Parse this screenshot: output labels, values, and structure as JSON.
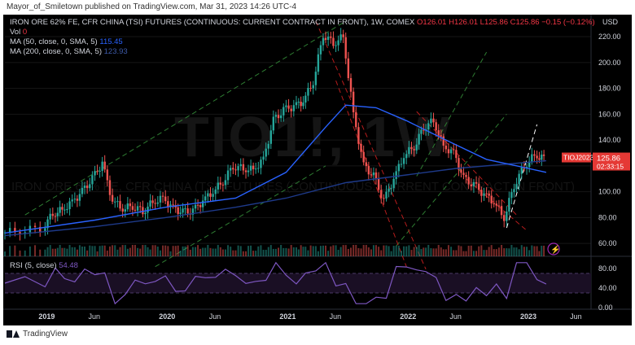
{
  "publisher_line": "Mayor_of_Smiletown published on TradingView.com, Mar 31, 2023 14:26 UTC-4",
  "footer_brand": "TradingView",
  "watermark": {
    "symbol": "TIO1!, 1W",
    "description": "IRON ORE 62% FE, CFR CHINA (TSI) FUTURES (CONTINUOUS: CURRENT CONTRACT IN FRONT)"
  },
  "legend": {
    "symbol_line": "IRON ORE 62% FE, CFR CHINA (TSI) FUTURES (CONTINUOUS: CURRENT CONTRACT IN FRONT), 1W, COMEX",
    "ohlc": "O126.01  H126.01  L125.86  C125.86  −0.15 (−0.12%)",
    "vol_label": "Vol",
    "vol_value": "0",
    "ma50_label": "MA (50, close, 0, SMA, 5)",
    "ma50_value": "115.45",
    "ma200_label": "MA (200, close, 0, SMA, 5)",
    "ma200_value": "123.93",
    "rsi_label": "RSI (5, close)",
    "rsi_value": "54.48"
  },
  "price_tag": {
    "price": "125.86",
    "countdown": "02:33:15",
    "ticker": "TIOJ2023"
  },
  "colors": {
    "up": "#26a69a",
    "down": "#ef5350",
    "ma50": "#2962ff",
    "ma200": "#1e3a8a",
    "rsi": "#7e57c2",
    "trend_green": "#2e7d32",
    "trend_red": "#b71c1c",
    "tag": "#e53935"
  },
  "chart_data": {
    "type": "candlestick",
    "currency": "USD",
    "y_ticks": [
      "60.00",
      "80.00",
      "100.00",
      "120.00",
      "140.00",
      "160.00",
      "180.00",
      "200.00",
      "220.00"
    ],
    "x_ticks": [
      "2019",
      "Jun",
      "2020",
      "Jun",
      "2021",
      "Jun",
      "2022",
      "Jun",
      "2023",
      "Jun"
    ],
    "rsi_ticks": [
      "80.00",
      "40.00",
      "0.00"
    ],
    "ylim": [
      50,
      232
    ],
    "rsi_bands": [
      70,
      30
    ],
    "close_series": [
      {
        "date": "2018-09",
        "value": 68
      },
      {
        "date": "2018-11",
        "value": 70
      },
      {
        "date": "2019-01",
        "value": 72
      },
      {
        "date": "2019-02",
        "value": 83
      },
      {
        "date": "2019-03",
        "value": 86
      },
      {
        "date": "2019-04",
        "value": 92
      },
      {
        "date": "2019-05",
        "value": 100
      },
      {
        "date": "2019-06",
        "value": 110
      },
      {
        "date": "2019-07",
        "value": 122
      },
      {
        "date": "2019-08",
        "value": 93
      },
      {
        "date": "2019-09",
        "value": 87
      },
      {
        "date": "2019-10",
        "value": 89
      },
      {
        "date": "2019-11",
        "value": 85
      },
      {
        "date": "2019-12",
        "value": 92
      },
      {
        "date": "2020-01",
        "value": 95
      },
      {
        "date": "2020-02",
        "value": 87
      },
      {
        "date": "2020-03",
        "value": 84
      },
      {
        "date": "2020-04",
        "value": 85
      },
      {
        "date": "2020-05",
        "value": 93
      },
      {
        "date": "2020-06",
        "value": 100
      },
      {
        "date": "2020-07",
        "value": 108
      },
      {
        "date": "2020-08",
        "value": 120
      },
      {
        "date": "2020-09",
        "value": 118
      },
      {
        "date": "2020-10",
        "value": 117
      },
      {
        "date": "2020-11",
        "value": 125
      },
      {
        "date": "2020-12",
        "value": 155
      },
      {
        "date": "2021-01",
        "value": 163
      },
      {
        "date": "2021-02",
        "value": 166
      },
      {
        "date": "2021-03",
        "value": 170
      },
      {
        "date": "2021-04",
        "value": 185
      },
      {
        "date": "2021-05",
        "value": 222
      },
      {
        "date": "2021-06",
        "value": 215
      },
      {
        "date": "2021-07",
        "value": 220
      },
      {
        "date": "2021-08",
        "value": 160
      },
      {
        "date": "2021-09",
        "value": 120
      },
      {
        "date": "2021-10",
        "value": 112
      },
      {
        "date": "2021-11",
        "value": 93
      },
      {
        "date": "2021-12",
        "value": 110
      },
      {
        "date": "2022-01",
        "value": 128
      },
      {
        "date": "2022-02",
        "value": 135
      },
      {
        "date": "2022-03",
        "value": 150
      },
      {
        "date": "2022-04",
        "value": 155
      },
      {
        "date": "2022-05",
        "value": 135
      },
      {
        "date": "2022-06",
        "value": 130
      },
      {
        "date": "2022-07",
        "value": 110
      },
      {
        "date": "2022-08",
        "value": 105
      },
      {
        "date": "2022-09",
        "value": 98
      },
      {
        "date": "2022-10",
        "value": 92
      },
      {
        "date": "2022-11",
        "value": 80
      },
      {
        "date": "2022-12",
        "value": 105
      },
      {
        "date": "2023-01",
        "value": 120
      },
      {
        "date": "2023-02",
        "value": 128
      },
      {
        "date": "2023-03",
        "value": 126
      }
    ],
    "ma50_series": [
      {
        "date": "2018-09",
        "value": 68
      },
      {
        "date": "2019-06",
        "value": 78
      },
      {
        "date": "2020-01",
        "value": 88
      },
      {
        "date": "2020-08",
        "value": 95
      },
      {
        "date": "2021-01",
        "value": 115
      },
      {
        "date": "2021-05",
        "value": 150
      },
      {
        "date": "2021-07",
        "value": 167
      },
      {
        "date": "2021-10",
        "value": 165
      },
      {
        "date": "2022-01",
        "value": 155
      },
      {
        "date": "2022-05",
        "value": 140
      },
      {
        "date": "2022-09",
        "value": 125
      },
      {
        "date": "2022-12",
        "value": 120
      },
      {
        "date": "2023-03",
        "value": 115
      }
    ],
    "ma200_series": [
      {
        "date": "2018-09",
        "value": 66
      },
      {
        "date": "2019-06",
        "value": 73
      },
      {
        "date": "2020-01",
        "value": 80
      },
      {
        "date": "2020-08",
        "value": 88
      },
      {
        "date": "2021-01",
        "value": 95
      },
      {
        "date": "2021-07",
        "value": 107
      },
      {
        "date": "2022-01",
        "value": 113
      },
      {
        "date": "2022-06",
        "value": 118
      },
      {
        "date": "2023-03",
        "value": 124
      }
    ]
  }
}
